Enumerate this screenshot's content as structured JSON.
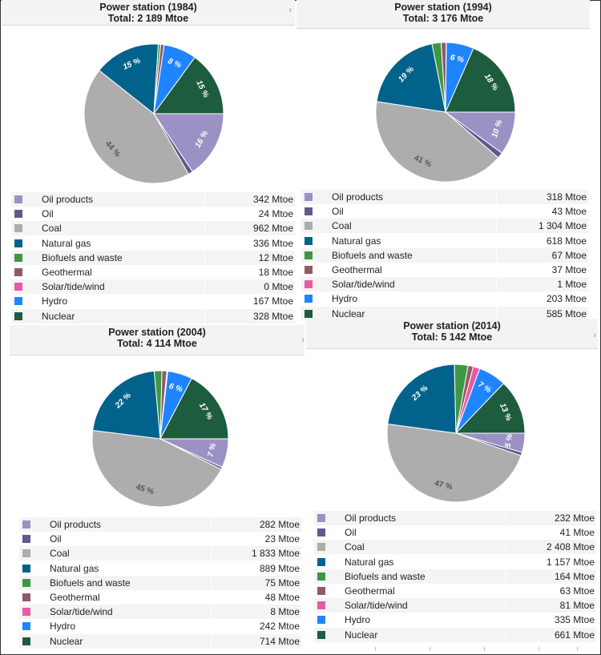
{
  "colors": {
    "oil_products": "#9b91c4",
    "oil": "#5e5a8c",
    "coal": "#adadad",
    "natural_gas": "#01628c",
    "biofuels": "#3f9643",
    "geothermal": "#8f5a64",
    "solar": "#e85aa6",
    "hydro": "#1f85ff",
    "nuclear": "#1d5c3c"
  },
  "chart_data": [
    {
      "type": "pie",
      "title": "Power station (1984)",
      "subtitle": "Total: 2 189 Mtoe",
      "unit": "Mtoe",
      "slices": [
        {
          "name": "Oil products",
          "value": 342,
          "value_label": "342 Mtoe",
          "pct_label": "16 %"
        },
        {
          "name": "Oil",
          "value": 24,
          "value_label": "24 Mtoe",
          "pct_label": ""
        },
        {
          "name": "Coal",
          "value": 962,
          "value_label": "962 Mtoe",
          "pct_label": "44 %"
        },
        {
          "name": "Natural gas",
          "value": 336,
          "value_label": "336 Mtoe",
          "pct_label": "15 %"
        },
        {
          "name": "Biofuels and waste",
          "value": 12,
          "value_label": "12 Mtoe",
          "pct_label": ""
        },
        {
          "name": "Geothermal",
          "value": 18,
          "value_label": "18 Mtoe",
          "pct_label": ""
        },
        {
          "name": "Solar/tide/wind",
          "value": 0,
          "value_label": "0 Mtoe",
          "pct_label": ""
        },
        {
          "name": "Hydro",
          "value": 167,
          "value_label": "167 Mtoe",
          "pct_label": "8 %"
        },
        {
          "name": "Nuclear",
          "value": 328,
          "value_label": "328 Mtoe",
          "pct_label": "15 %"
        }
      ]
    },
    {
      "type": "pie",
      "title": "Power station (1994)",
      "subtitle": "Total: 3 176 Mtoe",
      "unit": "Mtoe",
      "slices": [
        {
          "name": "Oil products",
          "value": 318,
          "value_label": "318 Mtoe",
          "pct_label": "10 %"
        },
        {
          "name": "Oil",
          "value": 43,
          "value_label": "43 Mtoe",
          "pct_label": ""
        },
        {
          "name": "Coal",
          "value": 1304,
          "value_label": "1 304 Mtoe",
          "pct_label": "41 %"
        },
        {
          "name": "Natural gas",
          "value": 618,
          "value_label": "618 Mtoe",
          "pct_label": "19 %"
        },
        {
          "name": "Biofuels and waste",
          "value": 67,
          "value_label": "67 Mtoe",
          "pct_label": ""
        },
        {
          "name": "Geothermal",
          "value": 37,
          "value_label": "37 Mtoe",
          "pct_label": ""
        },
        {
          "name": "Solar/tide/wind",
          "value": 1,
          "value_label": "1 Mtoe",
          "pct_label": ""
        },
        {
          "name": "Hydro",
          "value": 203,
          "value_label": "203 Mtoe",
          "pct_label": "6 %"
        },
        {
          "name": "Nuclear",
          "value": 585,
          "value_label": "585 Mtoe",
          "pct_label": "18 %"
        }
      ]
    },
    {
      "type": "pie",
      "title": "Power station (2004)",
      "subtitle": "Total: 4 114 Mtoe",
      "unit": "Mtoe",
      "slices": [
        {
          "name": "Oil products",
          "value": 282,
          "value_label": "282 Mtoe",
          "pct_label": "7 %"
        },
        {
          "name": "Oil",
          "value": 23,
          "value_label": "23 Mtoe",
          "pct_label": ""
        },
        {
          "name": "Coal",
          "value": 1833,
          "value_label": "1 833 Mtoe",
          "pct_label": "45 %"
        },
        {
          "name": "Natural gas",
          "value": 889,
          "value_label": "889 Mtoe",
          "pct_label": "22 %"
        },
        {
          "name": "Biofuels and waste",
          "value": 75,
          "value_label": "75 Mtoe",
          "pct_label": ""
        },
        {
          "name": "Geothermal",
          "value": 48,
          "value_label": "48 Mtoe",
          "pct_label": ""
        },
        {
          "name": "Solar/tide/wind",
          "value": 8,
          "value_label": "8 Mtoe",
          "pct_label": ""
        },
        {
          "name": "Hydro",
          "value": 242,
          "value_label": "242 Mtoe",
          "pct_label": "6 %"
        },
        {
          "name": "Nuclear",
          "value": 714,
          "value_label": "714 Mtoe",
          "pct_label": "17 %"
        }
      ]
    },
    {
      "type": "pie",
      "title": "Power station (2014)",
      "subtitle": "Total: 5 142 Mtoe",
      "unit": "Mtoe",
      "slices": [
        {
          "name": "Oil products",
          "value": 232,
          "value_label": "232 Mtoe",
          "pct_label": "5 %"
        },
        {
          "name": "Oil",
          "value": 41,
          "value_label": "41 Mtoe",
          "pct_label": ""
        },
        {
          "name": "Coal",
          "value": 2408,
          "value_label": "2 408 Mtoe",
          "pct_label": "47 %"
        },
        {
          "name": "Natural gas",
          "value": 1157,
          "value_label": "1 157 Mtoe",
          "pct_label": "23 %"
        },
        {
          "name": "Biofuels and waste",
          "value": 164,
          "value_label": "164 Mtoe",
          "pct_label": ""
        },
        {
          "name": "Geothermal",
          "value": 63,
          "value_label": "63 Mtoe",
          "pct_label": ""
        },
        {
          "name": "Solar/tide/wind",
          "value": 81,
          "value_label": "81 Mtoe",
          "pct_label": ""
        },
        {
          "name": "Hydro",
          "value": 335,
          "value_label": "335 Mtoe",
          "pct_label": "7 %"
        },
        {
          "name": "Nuclear",
          "value": 661,
          "value_label": "661 Mtoe",
          "pct_label": "13 %"
        }
      ]
    }
  ]
}
